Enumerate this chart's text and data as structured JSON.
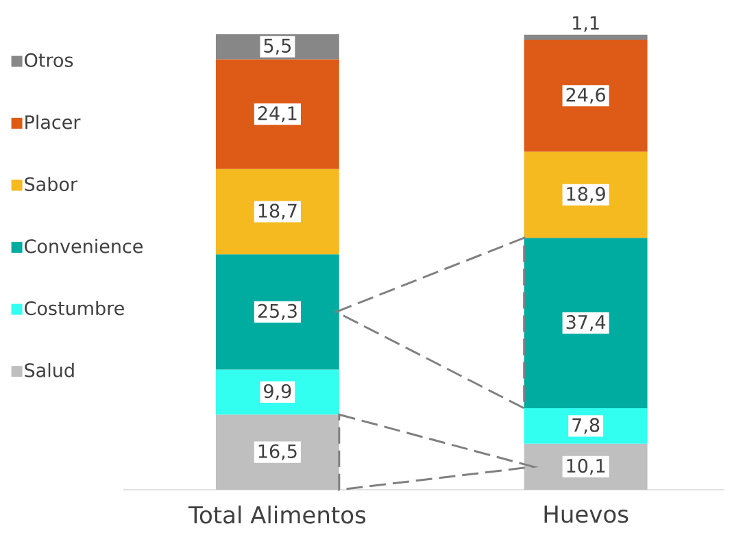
{
  "chart_data": {
    "type": "bar",
    "stacked": true,
    "legend": "left",
    "categories": [
      "Total Alimentos",
      "Huevos"
    ],
    "series": [
      {
        "name": "Salud",
        "color": "#bfbfbf",
        "values": [
          16.5,
          10.1
        ],
        "value_labels": [
          "16,5",
          "10,1"
        ]
      },
      {
        "name": "Costumbre",
        "color": "#33fff0",
        "values": [
          9.9,
          7.8
        ],
        "value_labels": [
          "9,9",
          "7,8"
        ]
      },
      {
        "name": "Convenience",
        "color": "#00aba0",
        "values": [
          25.3,
          37.4
        ],
        "value_labels": [
          "25,3",
          "37,4"
        ]
      },
      {
        "name": "Sabor",
        "color": "#f5ba1f",
        "values": [
          18.7,
          18.9
        ],
        "value_labels": [
          "18,7",
          "18,9"
        ]
      },
      {
        "name": "Placer",
        "color": "#de5a17",
        "values": [
          24.1,
          24.6
        ],
        "value_labels": [
          "24,1",
          "24,6"
        ]
      },
      {
        "name": "Otros",
        "color": "#878787",
        "values": [
          5.5,
          1.1
        ],
        "value_labels": [
          "5,5",
          "1,1"
        ]
      }
    ]
  }
}
